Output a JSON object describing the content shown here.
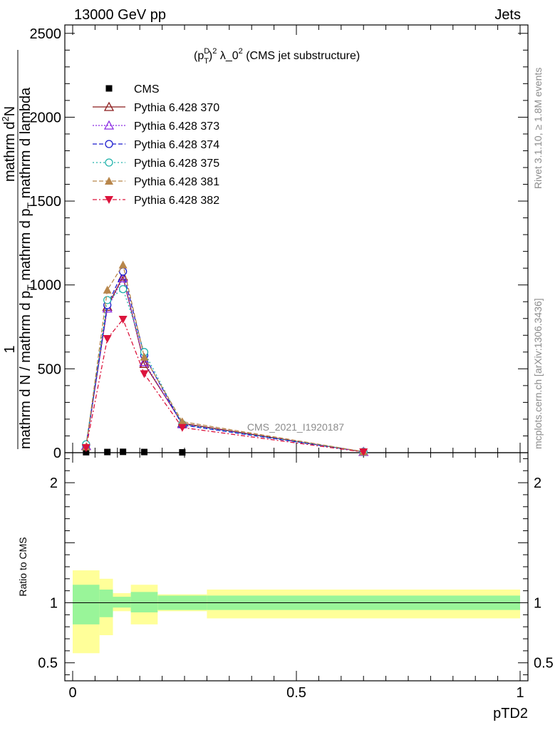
{
  "header": {
    "left": "13000 GeV pp",
    "right": "Jets"
  },
  "side": {
    "rivet": "Rivet 3.1.10, ≥ 1.8M events",
    "mcplots": "mcplots.cern.ch [arXiv:1306.3436]"
  },
  "chart_data": [
    {
      "type": "line",
      "title": "(p_T^D)^2 λ_0^2 (CMS jet substructure)",
      "title_parts": {
        "open": "(p",
        "sup1": "D",
        "sub1": "T",
        "close": ")",
        "sup2": "2",
        "rest": " λ_0",
        "sup3": "2",
        "tail": " (CMS jet substructure)"
      },
      "watermark": "CMS_2021_I1920187",
      "ylabel_num": "1",
      "ylabel_num2": "mathrm d^{2}N",
      "ylabel_den": "mathrm d N / mathrm d p_{T} mathrm d p_{T} mathrm d lambda",
      "ylabel_lines": [
        "1",
        "mathrm d N / mathrm d p",
        "mathrm d",
        "mathrm d p",
        "mathrm d lambda"
      ],
      "ylabel_parts": {
        "num_a": "mathrm d",
        "num_sup": "2",
        "num_b": "N",
        "den_a": "mathrm d N / mathrm d p",
        "den_sub1": "T",
        "den_b": "mathrm d p",
        "den_sub2": "T",
        "den_c": " mathrm d lambda"
      },
      "xlim": [
        0,
        1
      ],
      "ylim": [
        0,
        2550
      ],
      "yticks": [
        0,
        500,
        1000,
        1500,
        2000,
        2500
      ],
      "ytick_labels": [
        "0",
        "500",
        "1000",
        "1500",
        "2000",
        "2500"
      ],
      "x": [
        0.03,
        0.0775,
        0.1125,
        0.16,
        0.245,
        0.65
      ],
      "series": [
        {
          "name": "CMS",
          "color": "#000000",
          "marker": "square",
          "dash": "",
          "values": [
            3,
            4,
            5,
            4,
            2,
            0.2
          ]
        },
        {
          "name": "Pythia 6.428 370",
          "color": "#8b1a1a",
          "marker": "triangle-open",
          "dash": "",
          "values": [
            40,
            870,
            1050,
            530,
            175,
            5
          ]
        },
        {
          "name": "Pythia 6.428 373",
          "color": "#8a2be2",
          "marker": "triangle-open",
          "dash": "2,2",
          "values": [
            40,
            860,
            1040,
            540,
            170,
            5
          ]
        },
        {
          "name": "Pythia 6.428 374",
          "color": "#1a1acd",
          "marker": "circle-open",
          "dash": "6,3",
          "values": [
            45,
            880,
            1080,
            580,
            165,
            5
          ]
        },
        {
          "name": "Pythia 6.428 375",
          "color": "#20b2aa",
          "marker": "circle-open",
          "dash": "2,3",
          "values": [
            50,
            910,
            975,
            600,
            170,
            5
          ]
        },
        {
          "name": "Pythia 6.428 381",
          "color": "#b8864b",
          "marker": "triangle-filled",
          "dash": "6,3",
          "values": [
            35,
            970,
            1120,
            570,
            185,
            6
          ]
        },
        {
          "name": "Pythia 6.428 382",
          "color": "#dc143c",
          "marker": "triangle-down-filled",
          "dash": "6,3,2,3",
          "values": [
            30,
            680,
            795,
            470,
            150,
            4
          ]
        }
      ]
    },
    {
      "type": "area",
      "ylabel": "Ratio to CMS",
      "xlabel": "pTD2",
      "xlim": [
        0,
        1
      ],
      "ylim": [
        0.35,
        2.25
      ],
      "yticks": [
        0.5,
        1,
        2
      ],
      "ytick_labels": [
        "0.5",
        "1",
        "2"
      ],
      "xticks": [
        0,
        0.5,
        1
      ],
      "xtick_labels": [
        "0",
        "0.5",
        "1"
      ],
      "ratio_line": 1,
      "bands": [
        {
          "x0": 0.0,
          "x1": 0.06,
          "inner": [
            0.82,
            1.15
          ],
          "outer": [
            0.58,
            1.27
          ]
        },
        {
          "x0": 0.06,
          "x1": 0.09,
          "inner": [
            0.88,
            1.11
          ],
          "outer": [
            0.73,
            1.2
          ]
        },
        {
          "x0": 0.09,
          "x1": 0.13,
          "inner": [
            0.96,
            1.05
          ],
          "outer": [
            0.93,
            1.08
          ]
        },
        {
          "x0": 0.13,
          "x1": 0.19,
          "inner": [
            0.92,
            1.09
          ],
          "outer": [
            0.82,
            1.15
          ]
        },
        {
          "x0": 0.19,
          "x1": 0.3,
          "inner": [
            0.94,
            1.06
          ],
          "outer": [
            0.93,
            1.07
          ]
        },
        {
          "x0": 0.3,
          "x1": 1.0,
          "inner": [
            0.94,
            1.06
          ],
          "outer": [
            0.87,
            1.11
          ]
        }
      ],
      "band_colors": {
        "inner": "#99f599",
        "outer": "#ffff99"
      }
    }
  ]
}
